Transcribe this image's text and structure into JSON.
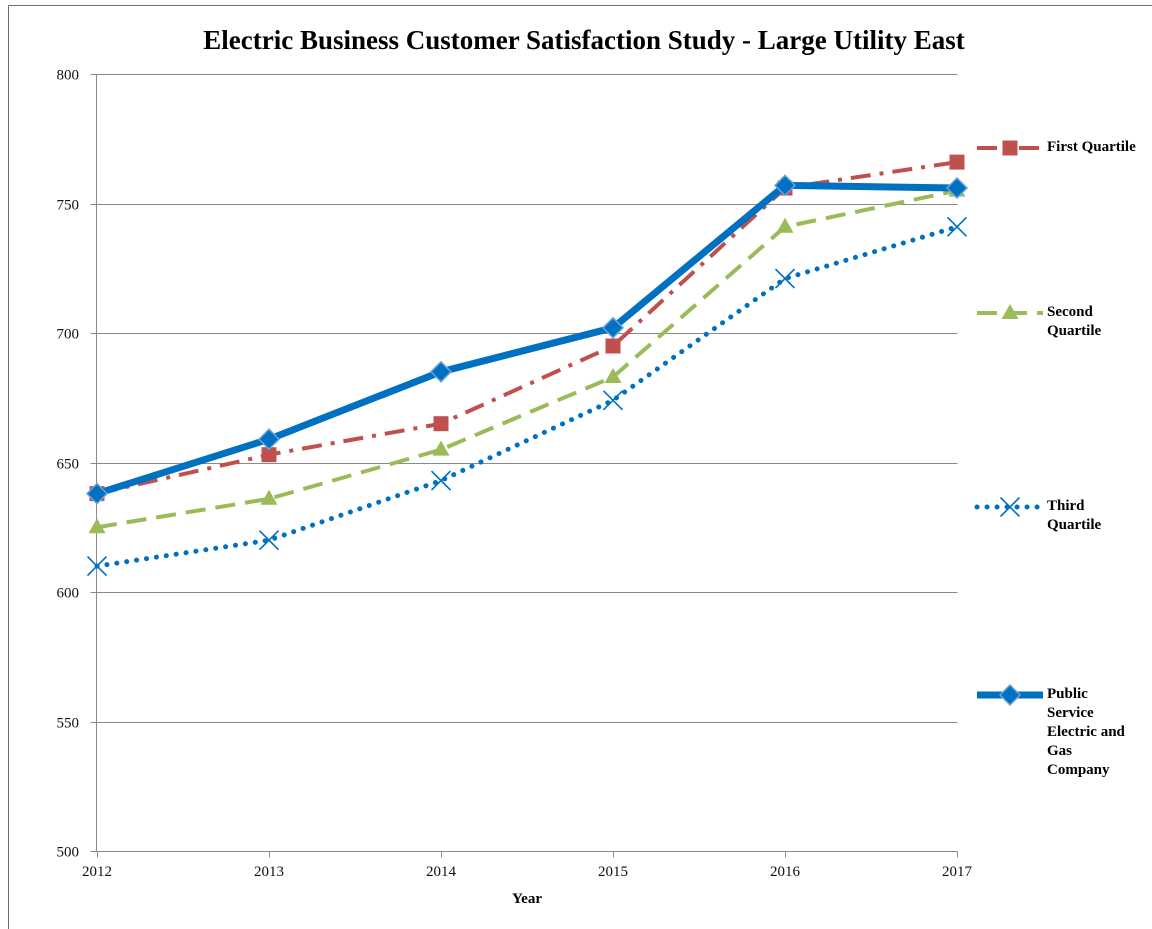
{
  "chart_data": {
    "type": "line",
    "title": "Electric Business Customer Satisfaction Study - Large Utility East",
    "xlabel": "Year",
    "categories": [
      "2012",
      "2013",
      "2014",
      "2015",
      "2016",
      "2017"
    ],
    "ylim": [
      500,
      800
    ],
    "yticks": [
      500,
      550,
      600,
      650,
      700,
      750,
      800
    ],
    "grid": true,
    "legend_position": "right",
    "series": [
      {
        "name": "First Quartile",
        "color": "#C0504D",
        "line_style": "long-dash-dot",
        "marker": "square",
        "values": [
          638,
          653,
          665,
          695,
          756,
          766
        ]
      },
      {
        "name": "Second Quartile",
        "color": "#9BBB59",
        "line_style": "dash",
        "marker": "triangle",
        "values": [
          625,
          636,
          655,
          683,
          741,
          755
        ]
      },
      {
        "name": "Third Quartile",
        "color": "#0070C0",
        "line_style": "round-dot",
        "marker": "x",
        "values": [
          610,
          620,
          643,
          674,
          721,
          741
        ]
      },
      {
        "name": "Public Service Electric and Gas Company",
        "color": "#0070C0",
        "line_style": "solid",
        "marker": "diamond",
        "values": [
          638,
          659,
          685,
          702,
          757,
          756
        ]
      }
    ]
  }
}
